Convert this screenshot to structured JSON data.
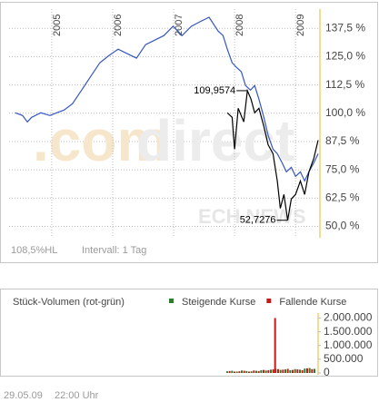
{
  "chart_data": [
    {
      "type": "line",
      "xlim": [
        2004.3,
        2009.4
      ],
      "xticks": [
        2005,
        2006,
        2007,
        2008,
        2009
      ],
      "ylim": [
        45,
        146
      ],
      "yticks": [
        {
          "value": 50,
          "label": "50,0 %"
        },
        {
          "value": 62.5,
          "label": "62,5 %"
        },
        {
          "value": 75,
          "label": "75,0 %"
        },
        {
          "value": 87.5,
          "label": "87,5 %"
        },
        {
          "value": 100,
          "label": "100,0 %"
        },
        {
          "value": 112.5,
          "label": "112,5 %"
        },
        {
          "value": 125,
          "label": "125,0 %"
        },
        {
          "value": 137.5,
          "label": "137,5 %"
        }
      ],
      "grid": true,
      "watermark": [
        ".com",
        "direct",
        "ECH NEWS"
      ],
      "info": [
        "108,5%HL",
        "Intervall: 1 Tag"
      ],
      "series": [
        {
          "color": "#3556c0",
          "x": [
            2004.4,
            2004.52,
            2004.6,
            2004.67,
            2004.82,
            2004.97,
            2005.08,
            2005.2,
            2005.34,
            2005.49,
            2005.64,
            2005.79,
            2005.94,
            2006.09,
            2006.24,
            2006.39,
            2006.54,
            2006.69,
            2006.84,
            2006.99,
            2007.14,
            2007.29,
            2007.43,
            2007.58,
            2007.73,
            2007.81,
            2007.88,
            2007.96,
            2008.03,
            2008.11,
            2008.18,
            2008.26,
            2008.33,
            2008.4,
            2008.48,
            2008.55,
            2008.63,
            2008.7,
            2008.78,
            2008.85,
            2008.93,
            2009.0,
            2009.08,
            2009.15,
            2009.22,
            2009.3,
            2009.37
          ],
          "values": [
            100.2,
            99.0,
            96.2,
            98.2,
            100.2,
            99.0,
            100.2,
            101.4,
            104.2,
            110.2,
            116.3,
            122.3,
            125.5,
            128.3,
            126.3,
            124.3,
            130.3,
            132.3,
            134.3,
            138.4,
            134.3,
            138.4,
            140.4,
            142.4,
            136.3,
            134.3,
            128.3,
            122.3,
            120.3,
            118.3,
            112.2,
            110.2,
            112.2,
            106.2,
            98.2,
            90.2,
            84.1,
            82.1,
            78.1,
            74.1,
            76.1,
            72.1,
            74.1,
            70.1,
            74.1,
            78.1,
            82.1
          ]
        },
        {
          "color": "#000000",
          "x": [
            2007.88,
            2007.96,
            2008.0,
            2008.06,
            2008.15,
            2008.21,
            2008.27,
            2008.33,
            2008.4,
            2008.48,
            2008.55,
            2008.63,
            2008.7,
            2008.75,
            2008.81,
            2008.87,
            2008.93,
            2009.0,
            2009.08,
            2009.15,
            2009.22,
            2009.3,
            2009.37
          ],
          "values": [
            100.2,
            98.2,
            84.1,
            102.2,
            96.2,
            109.9574,
            106.2,
            100.2,
            102.2,
            94.2,
            86.1,
            82.1,
            70.1,
            58.0,
            64.1,
            52.7276,
            62.1,
            64.1,
            70.1,
            64.1,
            74.1,
            80.1,
            88.1
          ]
        }
      ],
      "annotations": [
        {
          "label": "109,9574",
          "x": 2008.21,
          "value": 109.9574
        },
        {
          "label": "52,7276",
          "x": 2008.87,
          "value": 52.7276
        }
      ]
    },
    {
      "type": "bar",
      "title": "Stück-Volumen (rot-grün)",
      "xlim": [
        2004.3,
        2009.4
      ],
      "ylim": [
        0,
        2180000
      ],
      "yticks": [
        0,
        {
          "value": 500000,
          "label": "500.000"
        },
        {
          "value": 1000000,
          "label": "1.000.000"
        },
        {
          "value": 1500000,
          "label": "1.500.000"
        },
        {
          "value": 2000000,
          "label": "2.000.000"
        }
      ],
      "series": [
        {
          "name": "Steigende Kurse",
          "color": "#2d7d2d",
          "x": [
            2007.9,
            2007.98,
            2008.06,
            2008.14,
            2008.22,
            2008.3,
            2008.38,
            2008.46,
            2008.54,
            2008.62,
            2008.7,
            2008.78,
            2008.86,
            2008.94,
            2009.02,
            2009.1,
            2009.18,
            2009.26,
            2009.34
          ],
          "values": [
            60000,
            80000,
            50000,
            90000,
            70000,
            60000,
            80000,
            100000,
            90000,
            120000,
            150000,
            110000,
            130000,
            100000,
            140000,
            120000,
            160000,
            180000,
            150000
          ]
        },
        {
          "name": "Fallende Kurse",
          "color": "#c81818",
          "x": [
            2007.94,
            2008.02,
            2008.1,
            2008.18,
            2008.26,
            2008.34,
            2008.42,
            2008.5,
            2008.58,
            2008.66,
            2008.69,
            2008.74,
            2008.82,
            2008.9,
            2008.98,
            2009.06,
            2009.14,
            2009.22,
            2009.3
          ],
          "values": [
            70000,
            50000,
            60000,
            80000,
            50000,
            90000,
            70000,
            110000,
            100000,
            130000,
            2000000,
            140000,
            120000,
            150000,
            110000,
            130000,
            100000,
            170000,
            140000
          ]
        }
      ]
    }
  ],
  "timestamp": [
    "29.05.09",
    "22:00 Uhr"
  ]
}
